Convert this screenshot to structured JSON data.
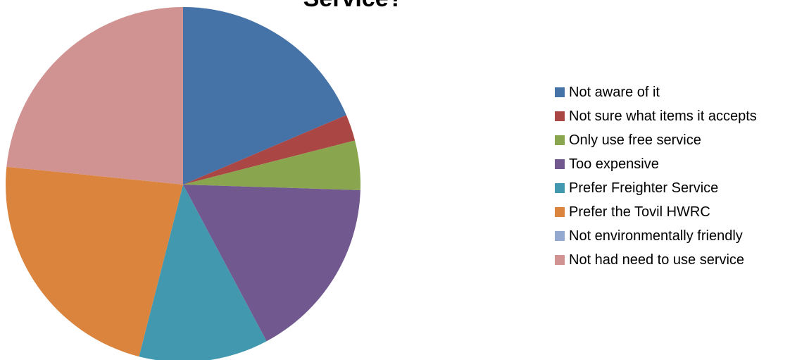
{
  "chart_data": {
    "type": "pie",
    "title": "Service?",
    "legend_position": "right",
    "categories": [
      "Not aware of it",
      "Not sure what items it accepts",
      "Only use free service",
      "Too expensive",
      "Prefer Freighter Service",
      "Prefer the Tovil HWRC",
      "Not environmentally friendly",
      "Not had need to use service"
    ],
    "values": [
      18.6,
      2.4,
      4.5,
      16.7,
      11.8,
      22.6,
      0,
      23.4
    ],
    "colors": [
      "#4572A7",
      "#AA4643",
      "#89A54E",
      "#71588F",
      "#4198AF",
      "#DB843D",
      "#93A9CF",
      "#D19392"
    ]
  }
}
